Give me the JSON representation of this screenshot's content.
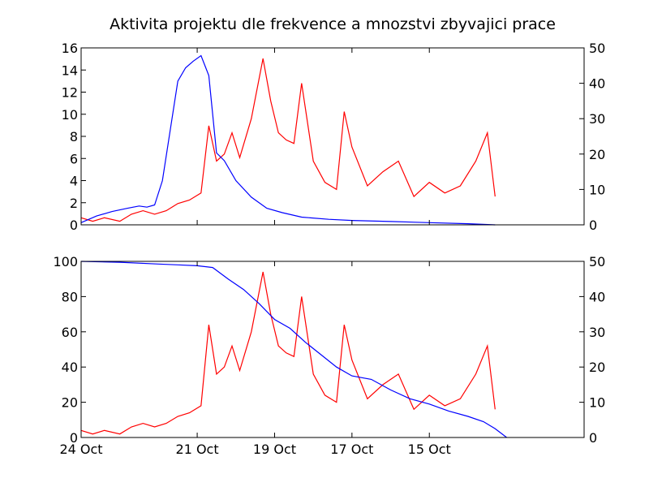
{
  "chart_data": [
    {
      "type": "line",
      "title": "Aktivita projektu dle frekvence a mnozstvi zbyvajici prace",
      "x_axis": {
        "type": "date",
        "direction": "reversed",
        "range": [
          "2011-10-24",
          "2011-10-11"
        ],
        "tick_labels": []
      },
      "left_axis": {
        "range": [
          0,
          16
        ],
        "tick_labels": [
          "0",
          "2",
          "4",
          "6",
          "8",
          "10",
          "12",
          "14",
          "16"
        ]
      },
      "right_axis": {
        "range": [
          0,
          50
        ],
        "tick_labels": [
          "0",
          "10",
          "20",
          "30",
          "40",
          "50"
        ]
      },
      "grid": false,
      "series": [
        {
          "color": "#0000ff",
          "axis": "left",
          "points": [
            [
              "2011-10-24",
              0.2
            ],
            [
              "2011-10-23.6",
              0.8
            ],
            [
              "2011-10-23.2",
              1.2
            ],
            [
              "2011-10-22.8",
              1.5
            ],
            [
              "2011-10-22.5",
              1.7
            ],
            [
              "2011-10-22.3",
              1.6
            ],
            [
              "2011-10-22.1",
              1.8
            ],
            [
              "2011-10-21.9",
              4.0
            ],
            [
              "2011-10-21.7",
              8.5
            ],
            [
              "2011-10-21.5",
              13.0
            ],
            [
              "2011-10-21.3",
              14.2
            ],
            [
              "2011-10-21.1",
              14.8
            ],
            [
              "2011-10-20.9",
              15.3
            ],
            [
              "2011-10-20.7",
              13.5
            ],
            [
              "2011-10-20.5",
              6.5
            ],
            [
              "2011-10-20.3",
              5.8
            ],
            [
              "2011-10-20.0",
              4.0
            ],
            [
              "2011-10-19.6",
              2.5
            ],
            [
              "2011-10-19.2",
              1.5
            ],
            [
              "2011-10-18.8",
              1.1
            ],
            [
              "2011-10-18.3",
              0.7
            ],
            [
              "2011-10-17.6",
              0.5
            ],
            [
              "2011-10-17.0",
              0.4
            ],
            [
              "2011-10-16.0",
              0.3
            ],
            [
              "2011-10-15.0",
              0.2
            ],
            [
              "2011-10-14.0",
              0.1
            ],
            [
              "2011-10-13.3",
              0.0
            ]
          ]
        },
        {
          "color": "#ff0000",
          "axis": "right",
          "points": [
            [
              "2011-10-24",
              2
            ],
            [
              "2011-10-23.7",
              1
            ],
            [
              "2011-10-23.4",
              2
            ],
            [
              "2011-10-23.0",
              1
            ],
            [
              "2011-10-22.7",
              3
            ],
            [
              "2011-10-22.4",
              4
            ],
            [
              "2011-10-22.1",
              3
            ],
            [
              "2011-10-21.8",
              4
            ],
            [
              "2011-10-21.5",
              6
            ],
            [
              "2011-10-21.2",
              7
            ],
            [
              "2011-10-20.9",
              9
            ],
            [
              "2011-10-20.7",
              28
            ],
            [
              "2011-10-20.5",
              18
            ],
            [
              "2011-10-20.3",
              20
            ],
            [
              "2011-10-20.1",
              26
            ],
            [
              "2011-10-19.9",
              19
            ],
            [
              "2011-10-19.6",
              30
            ],
            [
              "2011-10-19.3",
              47
            ],
            [
              "2011-10-19.1",
              35
            ],
            [
              "2011-10-18.9",
              26
            ],
            [
              "2011-10-18.7",
              24
            ],
            [
              "2011-10-18.5",
              23
            ],
            [
              "2011-10-18.3",
              40
            ],
            [
              "2011-10-18.0",
              18
            ],
            [
              "2011-10-17.7",
              12
            ],
            [
              "2011-10-17.4",
              10
            ],
            [
              "2011-10-17.2",
              32
            ],
            [
              "2011-10-17.0",
              22
            ],
            [
              "2011-10-16.6",
              11
            ],
            [
              "2011-10-16.2",
              15
            ],
            [
              "2011-10-15.8",
              18
            ],
            [
              "2011-10-15.4",
              8
            ],
            [
              "2011-10-15.0",
              12
            ],
            [
              "2011-10-14.6",
              9
            ],
            [
              "2011-10-14.2",
              11
            ],
            [
              "2011-10-13.8",
              18
            ],
            [
              "2011-10-13.5",
              26
            ],
            [
              "2011-10-13.3",
              8
            ]
          ]
        }
      ]
    },
    {
      "type": "line",
      "title": "",
      "x_axis": {
        "type": "date",
        "direction": "reversed",
        "range": [
          "2011-10-24",
          "2011-10-11"
        ],
        "tick_labels": [
          "24 Oct",
          "21 Oct",
          "19 Oct",
          "17 Oct",
          "15 Oct"
        ]
      },
      "left_axis": {
        "range": [
          0,
          100
        ],
        "tick_labels": [
          "0",
          "20",
          "40",
          "60",
          "80",
          "100"
        ]
      },
      "right_axis": {
        "range": [
          0,
          50
        ],
        "tick_labels": [
          "0",
          "10",
          "20",
          "30",
          "40",
          "50"
        ]
      },
      "grid": false,
      "series": [
        {
          "color": "#0000ff",
          "axis": "left",
          "points": [
            [
              "2011-10-24",
              100
            ],
            [
              "2011-10-23.0",
              99.5
            ],
            [
              "2011-10-22.0",
              98.5
            ],
            [
              "2011-10-21.5",
              98.0
            ],
            [
              "2011-10-21.0",
              97.5
            ],
            [
              "2011-10-20.6",
              96.5
            ],
            [
              "2011-10-20.2",
              90.0
            ],
            [
              "2011-10-19.8",
              84.0
            ],
            [
              "2011-10-19.4",
              76.0
            ],
            [
              "2011-10-19.0",
              67.0
            ],
            [
              "2011-10-18.6",
              62.0
            ],
            [
              "2011-10-18.2",
              54.0
            ],
            [
              "2011-10-17.8",
              47.0
            ],
            [
              "2011-10-17.4",
              40.0
            ],
            [
              "2011-10-17.0",
              35.0
            ],
            [
              "2011-10-16.5",
              33.0
            ],
            [
              "2011-10-16.0",
              27.0
            ],
            [
              "2011-10-15.5",
              22.0
            ],
            [
              "2011-10-15.0",
              19.0
            ],
            [
              "2011-10-14.5",
              15.0
            ],
            [
              "2011-10-14.0",
              12.0
            ],
            [
              "2011-10-13.6",
              9.0
            ],
            [
              "2011-10-13.3",
              5.0
            ],
            [
              "2011-10-13.0",
              0.0
            ]
          ]
        },
        {
          "color": "#ff0000",
          "axis": "right",
          "points": [
            [
              "2011-10-24",
              2
            ],
            [
              "2011-10-23.7",
              1
            ],
            [
              "2011-10-23.4",
              2
            ],
            [
              "2011-10-23.0",
              1
            ],
            [
              "2011-10-22.7",
              3
            ],
            [
              "2011-10-22.4",
              4
            ],
            [
              "2011-10-22.1",
              3
            ],
            [
              "2011-10-21.8",
              4
            ],
            [
              "2011-10-21.5",
              6
            ],
            [
              "2011-10-21.2",
              7
            ],
            [
              "2011-10-20.9",
              9
            ],
            [
              "2011-10-20.7",
              32
            ],
            [
              "2011-10-20.5",
              18
            ],
            [
              "2011-10-20.3",
              20
            ],
            [
              "2011-10-20.1",
              26
            ],
            [
              "2011-10-19.9",
              19
            ],
            [
              "2011-10-19.6",
              30
            ],
            [
              "2011-10-19.3",
              47
            ],
            [
              "2011-10-19.1",
              35
            ],
            [
              "2011-10-18.9",
              26
            ],
            [
              "2011-10-18.7",
              24
            ],
            [
              "2011-10-18.5",
              23
            ],
            [
              "2011-10-18.3",
              40
            ],
            [
              "2011-10-18.0",
              18
            ],
            [
              "2011-10-17.7",
              12
            ],
            [
              "2011-10-17.4",
              10
            ],
            [
              "2011-10-17.2",
              32
            ],
            [
              "2011-10-17.0",
              22
            ],
            [
              "2011-10-16.6",
              11
            ],
            [
              "2011-10-16.2",
              15
            ],
            [
              "2011-10-15.8",
              18
            ],
            [
              "2011-10-15.4",
              8
            ],
            [
              "2011-10-15.0",
              12
            ],
            [
              "2011-10-14.6",
              9
            ],
            [
              "2011-10-14.2",
              11
            ],
            [
              "2011-10-13.8",
              18
            ],
            [
              "2011-10-13.5",
              26
            ],
            [
              "2011-10-13.3",
              8
            ]
          ]
        }
      ]
    }
  ]
}
